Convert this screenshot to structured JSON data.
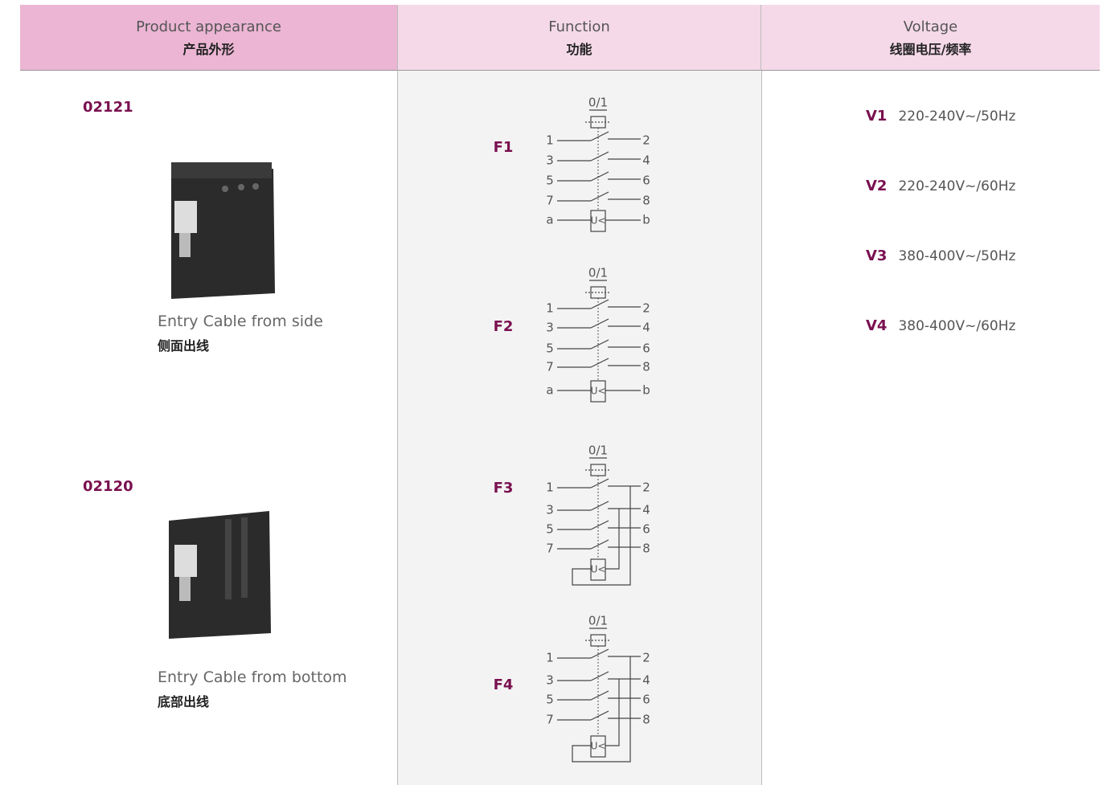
{
  "header": {
    "columns": [
      {
        "en": "Product appearance",
        "zh": "产品外形"
      },
      {
        "en": "Function",
        "zh": "功能"
      },
      {
        "en": "Voltage",
        "zh": "线圈电压/频率"
      }
    ]
  },
  "products": [
    {
      "code": "02121",
      "name_en": "Entry Cable from side",
      "name_zh": "侧面出线"
    },
    {
      "code": "02120",
      "name_en": "Entry Cable from bottom",
      "name_zh": "底部出线"
    }
  ],
  "functions": [
    {
      "label": "F1",
      "top": "0/1",
      "left": [
        "1",
        "3",
        "5",
        "7",
        "a"
      ],
      "right": [
        "2",
        "4",
        "6",
        "8",
        "b"
      ],
      "coil": "U<"
    },
    {
      "label": "F2",
      "top": "0/1",
      "left": [
        "1",
        "3",
        "5",
        "7",
        "a"
      ],
      "right": [
        "2",
        "4",
        "6",
        "8",
        "b"
      ],
      "coil": "U<"
    },
    {
      "label": "F3",
      "top": "0/1",
      "left": [
        "1",
        "3",
        "5",
        "7"
      ],
      "right": [
        "2",
        "4",
        "6",
        "8"
      ],
      "coil": "U<"
    },
    {
      "label": "F4",
      "top": "0/1",
      "left": [
        "1",
        "3",
        "5",
        "7"
      ],
      "right": [
        "2",
        "4",
        "6",
        "8"
      ],
      "coil": "U<"
    }
  ],
  "voltages": [
    {
      "code": "V1",
      "value": "220-240V~/50Hz"
    },
    {
      "code": "V2",
      "value": "220-240V~/60Hz"
    },
    {
      "code": "V3",
      "value": "380-400V~/50Hz"
    },
    {
      "code": "V4",
      "value": "380-400V~/60Hz"
    }
  ]
}
